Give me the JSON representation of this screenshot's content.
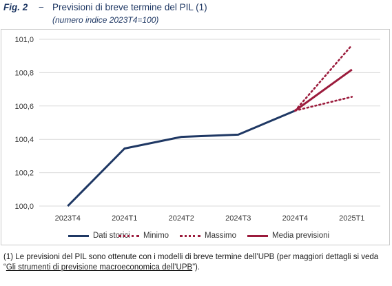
{
  "figure": {
    "label": "Fig. 2",
    "dash": "−",
    "title": "Previsioni di breve termine del PIL (1)",
    "subtitle": "(numero indice 2023T4=100)"
  },
  "chart_data": {
    "type": "line",
    "categories": [
      "2023T4",
      "2024T1",
      "2024T2",
      "2024T3",
      "2024T4",
      "2025T1"
    ],
    "y_ticks": [
      "100,0",
      "100,2",
      "100,4",
      "100,6",
      "100,8",
      "101,0"
    ],
    "ylim": [
      100.0,
      101.0
    ],
    "grid": "horizontal",
    "legend_position": "bottom",
    "series": [
      {
        "name": "Dati storici",
        "style": "solid",
        "color": "#1f3864",
        "x": [
          "2023T4",
          "2024T1",
          "2024T2",
          "2024T3",
          "2024T4"
        ],
        "values": [
          100.0,
          100.345,
          100.415,
          100.428,
          100.572
        ]
      },
      {
        "name": "Minimo",
        "style": "dotted",
        "color": "#9b1b3c",
        "x": [
          "2024T4",
          "2025T1"
        ],
        "values": [
          100.572,
          100.655
        ]
      },
      {
        "name": "Massimo",
        "style": "dotted",
        "color": "#9b1b3c",
        "x": [
          "2024T4",
          "2025T1"
        ],
        "values": [
          100.572,
          100.965
        ]
      },
      {
        "name": "Media previsioni",
        "style": "solid",
        "color": "#9b1b3c",
        "x": [
          "2024T4",
          "2025T1"
        ],
        "values": [
          100.572,
          100.818
        ]
      }
    ]
  },
  "legend": {
    "items": [
      {
        "label": "Dati storici",
        "style": "solid",
        "color": "#1f3864"
      },
      {
        "label": "Minimo",
        "style": "dotted",
        "color": "#9b1b3c"
      },
      {
        "label": "Massimo",
        "style": "dotted",
        "color": "#9b1b3c"
      },
      {
        "label": "Media previsioni",
        "style": "solid",
        "color": "#9b1b3c"
      }
    ]
  },
  "footnote": {
    "text_before": "(1) Le previsioni del PIL sono ottenute con i modelli di breve termine dell’UPB (per maggiori dettagli si veda “",
    "link_text": "Gli strumenti di previsione macroeconomica dell’UPB",
    "text_after": "”)."
  }
}
